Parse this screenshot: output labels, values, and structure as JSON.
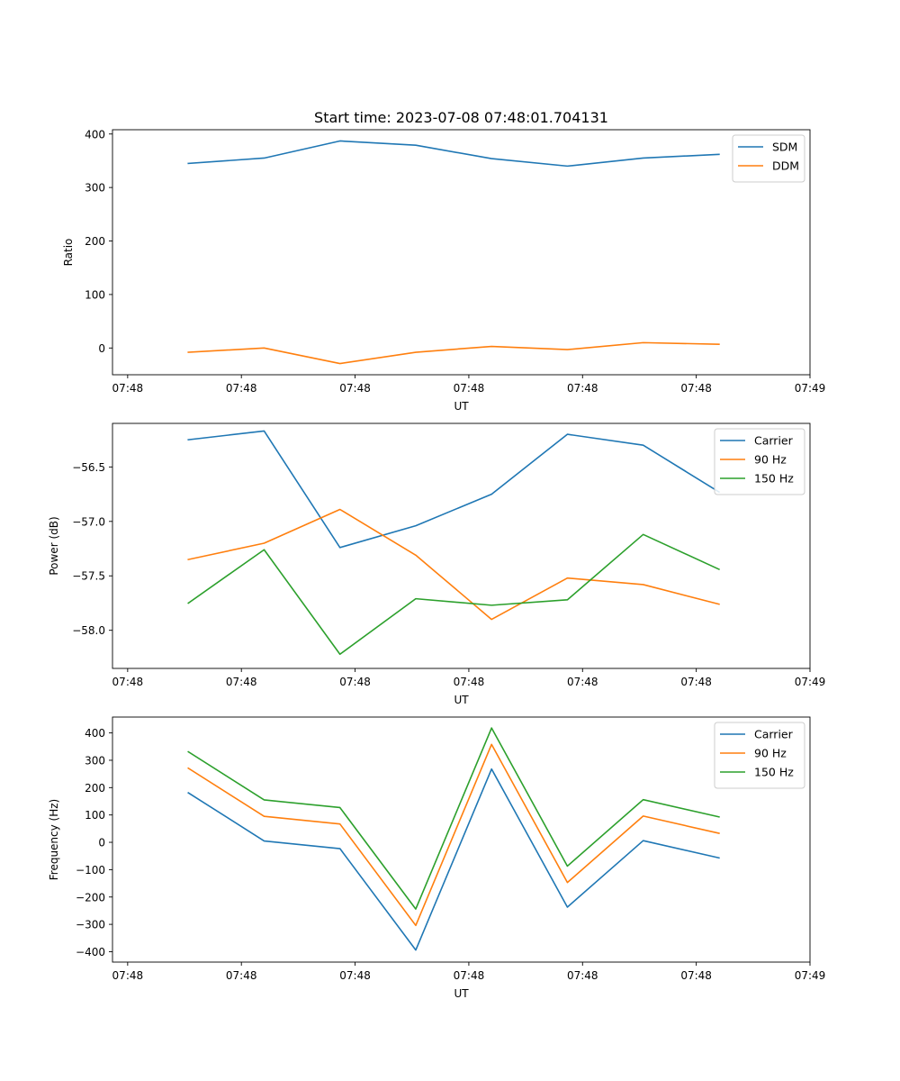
{
  "chart_data": [
    {
      "type": "line",
      "title": "Start time: 2023-07-08 07:48:01.704131",
      "xlabel": "UT",
      "ylabel": "Ratio",
      "x": [
        1,
        2,
        3,
        4,
        5,
        6,
        7,
        8
      ],
      "xlim": [
        0,
        9.2
      ],
      "xticks": [
        0.2,
        1.7,
        3.2,
        4.7,
        6.2,
        7.7,
        9.2
      ],
      "xtick_labels": [
        "07:48",
        "07:48",
        "07:48",
        "07:48",
        "07:48",
        "07:48",
        "07:49"
      ],
      "ylim": [
        -50,
        408
      ],
      "yticks": [
        0,
        100,
        200,
        300,
        400
      ],
      "ytick_labels": [
        "0",
        "100",
        "200",
        "300",
        "400"
      ],
      "legend": "top-right",
      "series": [
        {
          "name": "SDM",
          "color": "#1f77b4",
          "values": [
            345,
            355,
            387,
            379,
            354,
            340,
            355,
            362
          ]
        },
        {
          "name": "DDM",
          "color": "#ff7f0e",
          "values": [
            -8,
            0,
            -29,
            -8,
            3,
            -3,
            10,
            7
          ]
        }
      ]
    },
    {
      "type": "line",
      "title": "",
      "xlabel": "UT",
      "ylabel": "Power (dB)",
      "x": [
        1,
        2,
        3,
        4,
        5,
        6,
        7,
        8
      ],
      "xlim": [
        0,
        9.2
      ],
      "xticks": [
        0.2,
        1.7,
        3.2,
        4.7,
        6.2,
        7.7,
        9.2
      ],
      "xtick_labels": [
        "07:48",
        "07:48",
        "07:48",
        "07:48",
        "07:48",
        "07:48",
        "07:49"
      ],
      "ylim": [
        -58.35,
        -56.1
      ],
      "yticks": [
        -56.5,
        -57.0,
        -57.5,
        -58.0
      ],
      "ytick_labels": [
        "−56.5",
        "−57.0",
        "−57.5",
        "−58.0"
      ],
      "legend": "top-right",
      "series": [
        {
          "name": "Carrier",
          "color": "#1f77b4",
          "values": [
            -56.25,
            -56.17,
            -57.24,
            -57.04,
            -56.75,
            -56.2,
            -56.3,
            -56.73
          ]
        },
        {
          "name": "90 Hz",
          "color": "#ff7f0e",
          "values": [
            -57.35,
            -57.2,
            -56.89,
            -57.31,
            -57.9,
            -57.52,
            -57.58,
            -57.76
          ]
        },
        {
          "name": "150 Hz",
          "color": "#2ca02c",
          "values": [
            -57.75,
            -57.26,
            -58.22,
            -57.71,
            -57.77,
            -57.72,
            -57.12,
            -57.44
          ]
        }
      ]
    },
    {
      "type": "line",
      "title": "",
      "xlabel": "UT",
      "ylabel": "Frequency (Hz)",
      "x": [
        1,
        2,
        3,
        4,
        5,
        6,
        7,
        8
      ],
      "xlim": [
        0,
        9.2
      ],
      "xticks": [
        0.2,
        1.7,
        3.2,
        4.7,
        6.2,
        7.7,
        9.2
      ],
      "xtick_labels": [
        "07:48",
        "07:48",
        "07:48",
        "07:48",
        "07:48",
        "07:48",
        "07:49"
      ],
      "ylim": [
        -438,
        458
      ],
      "yticks": [
        400,
        300,
        200,
        100,
        0,
        -100,
        -200,
        -300,
        -400
      ],
      "ytick_labels": [
        "400",
        "300",
        "200",
        "100",
        "0",
        "−100",
        "−200",
        "−300",
        "−400"
      ],
      "legend": "top-right",
      "series": [
        {
          "name": "Carrier",
          "color": "#1f77b4",
          "values": [
            181,
            5,
            -23,
            -394,
            268,
            -237,
            6,
            -57
          ]
        },
        {
          "name": "90 Hz",
          "color": "#ff7f0e",
          "values": [
            271,
            95,
            67,
            -304,
            358,
            -147,
            96,
            33
          ]
        },
        {
          "name": "150 Hz",
          "color": "#2ca02c",
          "values": [
            331,
            155,
            127,
            -244,
            418,
            -87,
            156,
            93
          ]
        }
      ]
    }
  ]
}
